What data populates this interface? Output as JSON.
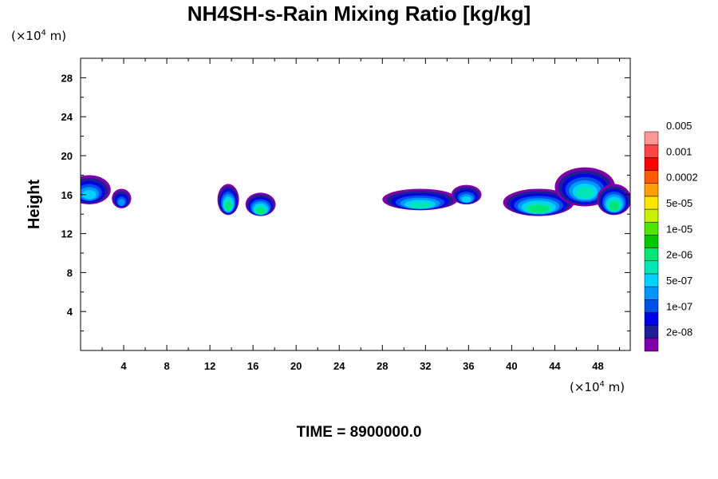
{
  "chart_data": {
    "type": "heatmap",
    "title": "NH4SH-s-Rain Mixing Ratio [kg/kg]",
    "ylabel": "Height",
    "y_unit_prefix": "(×10",
    "y_unit_exp": "4",
    "y_unit_suffix": " m)",
    "x_unit_prefix": "(×10",
    "x_unit_exp": "4",
    "x_unit_suffix": " m)",
    "footer": "TIME = 8900000.0",
    "xlim": [
      0,
      51
    ],
    "ylim": [
      0,
      30
    ],
    "x_ticks": [
      4,
      8,
      12,
      16,
      20,
      24,
      28,
      32,
      36,
      40,
      44,
      48
    ],
    "y_ticks": [
      4,
      8,
      12,
      16,
      20,
      24,
      28
    ],
    "colorbar": {
      "colors": [
        "#7d00a8",
        "#1e1e96",
        "#0000e6",
        "#0050e6",
        "#0096ff",
        "#00d2ff",
        "#00e6b4",
        "#00e678",
        "#00c800",
        "#50e600",
        "#c8f000",
        "#ffe600",
        "#ffa000",
        "#ff5a00",
        "#ff0000",
        "#ff4646",
        "#ff9696"
      ],
      "labels": [
        "2e-08",
        "1e-07",
        "5e-07",
        "2e-06",
        "1e-05",
        "5e-05",
        "0.0002",
        "0.001",
        "0.005"
      ]
    },
    "blobs": [
      {
        "x": 0.8,
        "y": 16.5,
        "rx": 2.0,
        "ry": 1.5,
        "max": 5
      },
      {
        "x": 3.8,
        "y": 15.6,
        "rx": 0.9,
        "ry": 1.0,
        "max": 4
      },
      {
        "x": 13.7,
        "y": 15.5,
        "rx": 1.0,
        "ry": 1.6,
        "max": 7
      },
      {
        "x": 16.7,
        "y": 15.0,
        "rx": 1.4,
        "ry": 1.2,
        "max": 7
      },
      {
        "x": 31.5,
        "y": 15.5,
        "rx": 3.5,
        "ry": 1.1,
        "max": 6
      },
      {
        "x": 35.8,
        "y": 16.0,
        "rx": 1.4,
        "ry": 1.0,
        "max": 5
      },
      {
        "x": 42.5,
        "y": 15.2,
        "rx": 3.3,
        "ry": 1.4,
        "max": 7
      },
      {
        "x": 46.8,
        "y": 16.8,
        "rx": 2.8,
        "ry": 2.0,
        "max": 6
      },
      {
        "x": 49.5,
        "y": 15.5,
        "rx": 1.6,
        "ry": 1.6,
        "max": 7
      }
    ]
  }
}
